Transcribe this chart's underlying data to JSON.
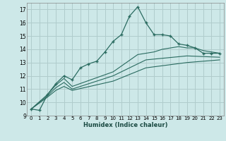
{
  "xlabel": "Humidex (Indice chaleur)",
  "bg_color": "#cde8e8",
  "grid_color": "#b0cccc",
  "line_color": "#2a6b60",
  "xlim": [
    -0.5,
    23.5
  ],
  "ylim": [
    9,
    17.5
  ],
  "yticks": [
    9,
    10,
    11,
    12,
    13,
    14,
    15,
    16,
    17
  ],
  "xticks": [
    0,
    1,
    2,
    3,
    4,
    5,
    6,
    7,
    8,
    9,
    10,
    11,
    12,
    13,
    14,
    15,
    16,
    17,
    18,
    19,
    20,
    21,
    22,
    23
  ],
  "line1_x": [
    0,
    1,
    2,
    3,
    4,
    5,
    6,
    7,
    8,
    9,
    10,
    11,
    12,
    13,
    14,
    15,
    16,
    17,
    18,
    19,
    20,
    21,
    22,
    23
  ],
  "line1_y": [
    9.5,
    9.4,
    10.6,
    11.4,
    12.0,
    11.7,
    12.6,
    12.9,
    13.1,
    13.8,
    14.6,
    15.1,
    16.5,
    17.2,
    16.0,
    15.1,
    15.1,
    15.0,
    14.4,
    14.3,
    14.1,
    13.7,
    13.7,
    13.7
  ],
  "line2_x": [
    0,
    2,
    3,
    4,
    5,
    10,
    13,
    14,
    15,
    16,
    17,
    18,
    19,
    20,
    21,
    22,
    23
  ],
  "line2_y": [
    9.5,
    10.6,
    11.3,
    11.8,
    11.2,
    12.3,
    13.6,
    13.7,
    13.8,
    14.0,
    14.1,
    14.2,
    14.1,
    14.1,
    13.9,
    13.8,
    13.7
  ],
  "line3_x": [
    0,
    2,
    3,
    4,
    5,
    10,
    14,
    19,
    23
  ],
  "line3_y": [
    9.5,
    10.5,
    11.1,
    11.5,
    11.0,
    12.0,
    13.2,
    13.5,
    13.4
  ],
  "line4_x": [
    0,
    2,
    3,
    4,
    5,
    10,
    14,
    19,
    23
  ],
  "line4_y": [
    9.5,
    10.4,
    10.9,
    11.2,
    10.9,
    11.6,
    12.6,
    13.0,
    13.2
  ]
}
